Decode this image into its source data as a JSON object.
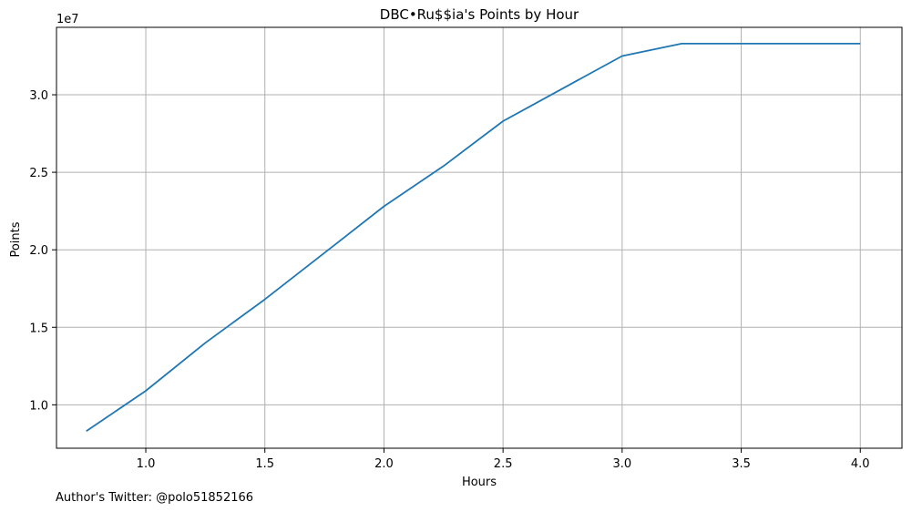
{
  "chart_data": {
    "type": "line",
    "title": "DBC•Ru$$ia's Points by Hour",
    "xlabel": "Hours",
    "ylabel": "Points",
    "y_offset_label": "1e7",
    "xlim": [
      0.625,
      4.175
    ],
    "ylim": [
      0.72,
      3.435
    ],
    "y_scale": "1e7",
    "grid": true,
    "x_ticks": [
      1.0,
      1.5,
      2.0,
      2.5,
      3.0,
      3.5,
      4.0
    ],
    "x_tick_labels": [
      "1.0",
      "1.5",
      "2.0",
      "2.5",
      "3.0",
      "3.5",
      "4.0"
    ],
    "y_ticks": [
      1.0,
      1.5,
      2.0,
      2.5,
      3.0
    ],
    "y_tick_labels": [
      "1.0",
      "1.5",
      "2.0",
      "2.5",
      "3.0"
    ],
    "series": [
      {
        "color": "#1f77b4",
        "x": [
          0.75,
          1.0,
          1.25,
          1.5,
          1.75,
          2.0,
          2.25,
          2.5,
          2.75,
          3.0,
          3.25,
          3.5,
          3.75,
          4.0
        ],
        "y": [
          0.83,
          1.09,
          1.4,
          1.68,
          1.98,
          2.28,
          2.54,
          2.83,
          3.04,
          3.25,
          3.33,
          3.33,
          3.33,
          3.33
        ]
      }
    ]
  },
  "footnote": "Author's Twitter: @polo51852166"
}
